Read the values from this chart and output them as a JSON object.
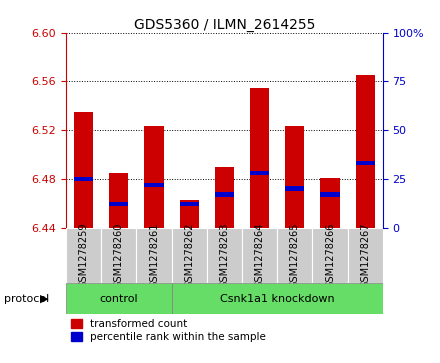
{
  "title": "GDS5360 / ILMN_2614255",
  "samples": [
    "GSM1278259",
    "GSM1278260",
    "GSM1278261",
    "GSM1278262",
    "GSM1278263",
    "GSM1278264",
    "GSM1278265",
    "GSM1278266",
    "GSM1278267"
  ],
  "transformed_count": [
    6.535,
    6.485,
    6.523,
    6.463,
    6.49,
    6.555,
    6.523,
    6.481,
    6.565
  ],
  "percentile_rank": [
    25,
    12,
    22,
    12,
    17,
    28,
    20,
    17,
    33
  ],
  "y_min": 6.44,
  "y_max": 6.6,
  "y_ticks": [
    6.44,
    6.48,
    6.52,
    6.56,
    6.6
  ],
  "y2_ticks": [
    0,
    25,
    50,
    75,
    100
  ],
  "bar_color": "#cc0000",
  "percentile_color": "#0000cc",
  "bar_width": 0.55,
  "control_count": 3,
  "control_label": "control",
  "treatment_label": "Csnk1a1 knockdown",
  "group_bg_color": "#66dd66",
  "protocol_label": "protocol",
  "legend_red": "transformed count",
  "legend_blue": "percentile rank within the sample",
  "title_fontsize": 10,
  "axis_color_left": "#cc0000",
  "axis_color_right": "#0000cc",
  "tick_bg_color": "#cccccc",
  "plot_bg_color": "#ffffff"
}
